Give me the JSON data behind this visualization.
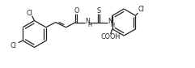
{
  "bg_color": "#ffffff",
  "line_color": "#222222",
  "line_width": 0.9,
  "font_size": 5.8,
  "figsize": [
    2.41,
    0.84
  ],
  "dpi": 100,
  "xlim": [
    0,
    10.5
  ],
  "ylim": [
    0,
    3.6
  ]
}
